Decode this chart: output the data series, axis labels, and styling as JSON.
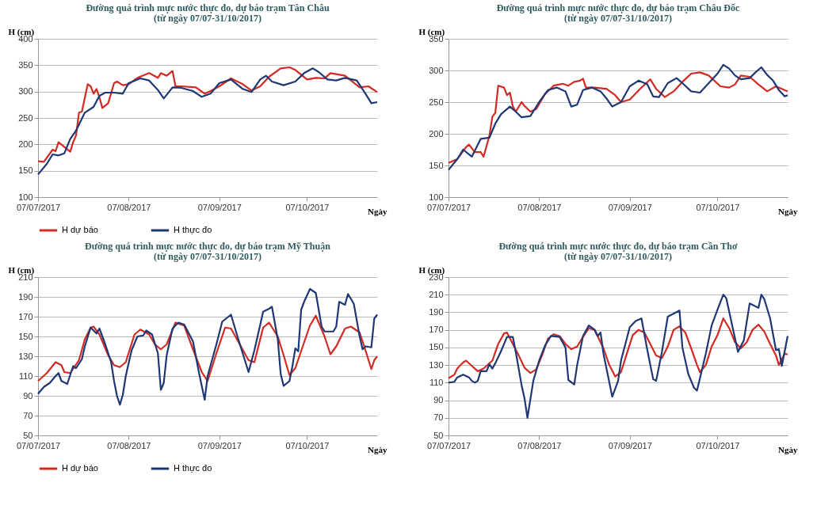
{
  "chart_data": [
    {
      "type": "line",
      "title": "Đường quá trình mực nước thực đo, dự báo trạm Tân Châu",
      "subtitle": "(từ ngày 07/07-31/10/2017)",
      "ylabel": "H (cm)",
      "xlabel": "Ngày",
      "legend": "bottom",
      "grid": "y",
      "xlim": [
        "2017-07-07",
        "2017-10-31"
      ],
      "xticks": [
        {
          "value": "2017-07-07",
          "label": "07/07/2017"
        },
        {
          "value": "2017-08-07",
          "label": "07/08/2017"
        },
        {
          "value": "2017-09-07",
          "label": "07/09/2017"
        },
        {
          "value": "2017-10-07",
          "label": "07/10/2017"
        }
      ],
      "ylim": [
        100,
        400
      ],
      "yticks": [
        100,
        150,
        200,
        250,
        300,
        350,
        400
      ],
      "series": [
        {
          "name": "H dự báo",
          "color": "#d42a24",
          "x": [
            "2017-07-07",
            "2017-07-09",
            "2017-07-12",
            "2017-07-13",
            "2017-07-14",
            "2017-07-16",
            "2017-07-18",
            "2017-07-19",
            "2017-07-20",
            "2017-07-21",
            "2017-07-22",
            "2017-07-24",
            "2017-07-25",
            "2017-07-26",
            "2017-07-27",
            "2017-07-28",
            "2017-07-29",
            "2017-07-31",
            "2017-08-02",
            "2017-08-03",
            "2017-08-05",
            "2017-08-07",
            "2017-08-10",
            "2017-08-14",
            "2017-08-17",
            "2017-08-18",
            "2017-08-20",
            "2017-08-22",
            "2017-08-23",
            "2017-08-25",
            "2017-08-30",
            "2017-09-02",
            "2017-09-04",
            "2017-09-07",
            "2017-09-11",
            "2017-09-15",
            "2017-09-18",
            "2017-09-21",
            "2017-09-24",
            "2017-09-28",
            "2017-10-01",
            "2017-10-03",
            "2017-10-07",
            "2017-10-10",
            "2017-10-13",
            "2017-10-15",
            "2017-10-20",
            "2017-10-25",
            "2017-10-28",
            "2017-10-31"
          ],
          "values": [
            168,
            167,
            190,
            187,
            204,
            195,
            186,
            204,
            217,
            260,
            262,
            314,
            310,
            296,
            305,
            289,
            269,
            278,
            316,
            319,
            312,
            314,
            326,
            335,
            326,
            335,
            330,
            339,
            310,
            310,
            308,
            296,
            301,
            310,
            325,
            314,
            302,
            310,
            328,
            344,
            346,
            341,
            323,
            326,
            325,
            335,
            330,
            308,
            310,
            299
          ]
        },
        {
          "name": "H thực đo",
          "color": "#1f3875",
          "x": [
            "2017-07-07",
            "2017-07-10",
            "2017-07-12",
            "2017-07-14",
            "2017-07-16",
            "2017-07-18",
            "2017-07-20",
            "2017-07-23",
            "2017-07-26",
            "2017-07-28",
            "2017-07-30",
            "2017-08-02",
            "2017-08-05",
            "2017-08-07",
            "2017-08-11",
            "2017-08-14",
            "2017-08-17",
            "2017-08-19",
            "2017-08-22",
            "2017-08-25",
            "2017-08-29",
            "2017-09-01",
            "2017-09-04",
            "2017-09-07",
            "2017-09-11",
            "2017-09-15",
            "2017-09-18",
            "2017-09-21",
            "2017-09-23",
            "2017-09-25",
            "2017-09-29",
            "2017-10-03",
            "2017-10-06",
            "2017-10-09",
            "2017-10-11",
            "2017-10-14",
            "2017-10-17",
            "2017-10-20",
            "2017-10-24",
            "2017-10-27",
            "2017-10-29",
            "2017-10-31"
          ],
          "values": [
            143,
            163,
            181,
            179,
            183,
            210,
            226,
            260,
            271,
            292,
            298,
            298,
            296,
            316,
            325,
            321,
            303,
            287,
            308,
            307,
            301,
            290,
            296,
            316,
            323,
            305,
            299,
            323,
            330,
            319,
            312,
            319,
            335,
            344,
            337,
            323,
            321,
            326,
            321,
            296,
            278,
            280
          ]
        }
      ]
    },
    {
      "type": "line",
      "title": "Đường quá trình mực nước thực đo, dự báo trạm Châu Đốc",
      "subtitle": "(từ ngày 07/07-31/10/2017)",
      "ylabel": "H (cm)",
      "xlabel": "Ngày",
      "legend": "bottom",
      "grid": "y",
      "xlim": [
        "2017-07-07",
        "2017-10-31"
      ],
      "xticks": [
        {
          "value": "2017-07-07",
          "label": "07/07/2017"
        },
        {
          "value": "2017-08-07",
          "label": "07/08/2017"
        },
        {
          "value": "2017-09-07",
          "label": "07/09/2017"
        },
        {
          "value": "2017-10-07",
          "label": "07/10/2017"
        }
      ],
      "ylim": [
        100,
        350
      ],
      "yticks": [
        100,
        150,
        200,
        250,
        300,
        350
      ],
      "series": [
        {
          "name": "H dự báo",
          "color": "#d42a24",
          "x": [
            "2017-07-07",
            "2017-07-10",
            "2017-07-13",
            "2017-07-14",
            "2017-07-16",
            "2017-07-18",
            "2017-07-19",
            "2017-07-21",
            "2017-07-22",
            "2017-07-23",
            "2017-07-24",
            "2017-07-26",
            "2017-07-27",
            "2017-07-28",
            "2017-07-29",
            "2017-07-30",
            "2017-08-01",
            "2017-08-02",
            "2017-08-04",
            "2017-08-06",
            "2017-08-09",
            "2017-08-12",
            "2017-08-15",
            "2017-08-17",
            "2017-08-19",
            "2017-08-21",
            "2017-08-22",
            "2017-08-23",
            "2017-08-26",
            "2017-08-30",
            "2017-09-02",
            "2017-09-04",
            "2017-09-07",
            "2017-09-11",
            "2017-09-14",
            "2017-09-16",
            "2017-09-19",
            "2017-09-22",
            "2017-09-25",
            "2017-09-28",
            "2017-10-01",
            "2017-10-04",
            "2017-10-08",
            "2017-10-11",
            "2017-10-13",
            "2017-10-15",
            "2017-10-18",
            "2017-10-21",
            "2017-10-24",
            "2017-10-27",
            "2017-10-31"
          ],
          "values": [
            154,
            160,
            179,
            183,
            171,
            171,
            164,
            197,
            227,
            233,
            276,
            273,
            261,
            265,
            243,
            235,
            250,
            244,
            235,
            239,
            263,
            276,
            279,
            276,
            282,
            284,
            287,
            273,
            273,
            271,
            261,
            250,
            254,
            273,
            286,
            271,
            258,
            267,
            282,
            295,
            297,
            292,
            275,
            273,
            278,
            292,
            290,
            278,
            267,
            275,
            267
          ]
        },
        {
          "name": "H thực đo",
          "color": "#1f3875",
          "x": [
            "2017-07-07",
            "2017-07-10",
            "2017-07-12",
            "2017-07-15",
            "2017-07-18",
            "2017-07-21",
            "2017-07-23",
            "2017-07-25",
            "2017-07-28",
            "2017-07-30",
            "2017-08-01",
            "2017-08-04",
            "2017-08-07",
            "2017-08-10",
            "2017-08-13",
            "2017-08-16",
            "2017-08-18",
            "2017-08-20",
            "2017-08-22",
            "2017-08-25",
            "2017-08-28",
            "2017-08-30",
            "2017-09-01",
            "2017-09-04",
            "2017-09-07",
            "2017-09-10",
            "2017-09-13",
            "2017-09-15",
            "2017-09-17",
            "2017-09-20",
            "2017-09-23",
            "2017-09-25",
            "2017-09-28",
            "2017-10-01",
            "2017-10-04",
            "2017-10-07",
            "2017-10-09",
            "2017-10-11",
            "2017-10-13",
            "2017-10-15",
            "2017-10-18",
            "2017-10-20",
            "2017-10-22",
            "2017-10-24",
            "2017-10-26",
            "2017-10-28",
            "2017-10-30",
            "2017-10-31"
          ],
          "values": [
            143,
            160,
            175,
            164,
            192,
            194,
            216,
            231,
            243,
            235,
            226,
            228,
            250,
            269,
            273,
            267,
            243,
            246,
            269,
            273,
            267,
            256,
            243,
            250,
            275,
            284,
            278,
            259,
            258,
            280,
            288,
            280,
            267,
            265,
            280,
            295,
            309,
            303,
            292,
            286,
            288,
            297,
            305,
            293,
            284,
            269,
            259,
            261
          ]
        }
      ]
    },
    {
      "type": "line",
      "title": "Đường quá trình mực nước thực đo, dự báo trạm Mỹ Thuận",
      "subtitle": "(từ ngày 07/07-31/10/2017)",
      "ylabel": "H (cm)",
      "xlabel": "Ngày",
      "legend": "bottom",
      "grid": "y",
      "xlim": [
        "2017-07-07",
        "2017-10-31"
      ],
      "xticks": [
        {
          "value": "2017-07-07",
          "label": "07/07/2017"
        },
        {
          "value": "2017-08-07",
          "label": "07/08/2017"
        },
        {
          "value": "2017-09-07",
          "label": "07/09/2017"
        },
        {
          "value": "2017-10-07",
          "label": "07/10/2017"
        }
      ],
      "ylim": [
        50,
        210
      ],
      "yticks": [
        50,
        70,
        90,
        110,
        130,
        150,
        170,
        190,
        210
      ],
      "series": [
        {
          "name": "H dự báo",
          "color": "#d42a24",
          "x": [
            "2017-07-07",
            "2017-07-10",
            "2017-07-13",
            "2017-07-15",
            "2017-07-16",
            "2017-07-18",
            "2017-07-21",
            "2017-07-23",
            "2017-07-25",
            "2017-07-26",
            "2017-07-28",
            "2017-07-31",
            "2017-08-02",
            "2017-08-04",
            "2017-08-06",
            "2017-08-09",
            "2017-08-11",
            "2017-08-14",
            "2017-08-16",
            "2017-08-18",
            "2017-08-20",
            "2017-08-23",
            "2017-08-26",
            "2017-08-29",
            "2017-09-01",
            "2017-09-03",
            "2017-09-06",
            "2017-09-09",
            "2017-09-11",
            "2017-09-14",
            "2017-09-17",
            "2017-09-19",
            "2017-09-22",
            "2017-09-24",
            "2017-09-27",
            "2017-09-29",
            "2017-10-01",
            "2017-10-03",
            "2017-10-06",
            "2017-10-08",
            "2017-10-10",
            "2017-10-13",
            "2017-10-15",
            "2017-10-17",
            "2017-10-20",
            "2017-10-22",
            "2017-10-25",
            "2017-10-27",
            "2017-10-29",
            "2017-10-30",
            "2017-10-31"
          ],
          "values": [
            105,
            113,
            124,
            121,
            114,
            113,
            126,
            147,
            159,
            160,
            152,
            131,
            121,
            119,
            124,
            152,
            157,
            152,
            142,
            137,
            142,
            164,
            161,
            137,
            114,
            105,
            133,
            159,
            158,
            142,
            126,
            124,
            159,
            164,
            150,
            131,
            111,
            118,
            144,
            161,
            171,
            150,
            132,
            140,
            158,
            160,
            154,
            136,
            117,
            126,
            130
          ]
        },
        {
          "name": "H thực đo",
          "color": "#1f3875",
          "x": [
            "2017-07-07",
            "2017-07-09",
            "2017-07-11",
            "2017-07-13",
            "2017-07-14",
            "2017-07-15",
            "2017-07-17",
            "2017-07-19",
            "2017-07-20",
            "2017-07-22",
            "2017-07-23",
            "2017-07-25",
            "2017-07-27",
            "2017-07-28",
            "2017-07-30",
            "2017-08-01",
            "2017-08-02",
            "2017-08-03",
            "2017-08-04",
            "2017-08-05",
            "2017-08-06",
            "2017-08-08",
            "2017-08-10",
            "2017-08-12",
            "2017-08-13",
            "2017-08-15",
            "2017-08-17",
            "2017-08-18",
            "2017-08-19",
            "2017-08-20",
            "2017-08-22",
            "2017-08-24",
            "2017-08-26",
            "2017-08-29",
            "2017-08-31",
            "2017-09-02",
            "2017-09-03",
            "2017-09-06",
            "2017-09-08",
            "2017-09-11",
            "2017-09-13",
            "2017-09-15",
            "2017-09-17",
            "2017-09-19",
            "2017-09-22",
            "2017-09-24",
            "2017-09-25",
            "2017-09-27",
            "2017-09-28",
            "2017-09-29",
            "2017-10-01",
            "2017-10-02",
            "2017-10-03",
            "2017-10-04",
            "2017-10-05",
            "2017-10-06",
            "2017-10-08",
            "2017-10-10",
            "2017-10-12",
            "2017-10-13",
            "2017-10-16",
            "2017-10-17",
            "2017-10-18",
            "2017-10-20",
            "2017-10-21",
            "2017-10-23",
            "2017-10-25",
            "2017-10-26",
            "2017-10-27",
            "2017-10-29",
            "2017-10-30",
            "2017-10-31"
          ],
          "values": [
            92,
            99,
            103,
            110,
            113,
            105,
            102,
            120,
            118,
            127,
            140,
            159,
            153,
            158,
            142,
            124,
            105,
            90,
            81,
            91,
            110,
            136,
            150,
            151,
            156,
            152,
            133,
            96,
            103,
            131,
            158,
            164,
            162,
            145,
            114,
            86,
            110,
            142,
            165,
            172,
            152,
            133,
            114,
            136,
            175,
            178,
            180,
            147,
            112,
            100,
            105,
            120,
            138,
            135,
            177,
            185,
            198,
            194,
            160,
            155,
            155,
            160,
            185,
            182,
            193,
            183,
            150,
            137,
            140,
            139,
            168,
            172
          ]
        }
      ]
    },
    {
      "type": "line",
      "title": "Đường quá trình mực nước thực đo, dự báo trạm Cần Thơ",
      "subtitle": "(từ ngày 07/07-31/10/2017)",
      "ylabel": "H (cm)",
      "xlabel": "Ngày",
      "legend": "bottom",
      "grid": "y",
      "xlim": [
        "2017-07-07",
        "2017-10-31"
      ],
      "xticks": [
        {
          "value": "2017-07-07",
          "label": "07/07/2017"
        },
        {
          "value": "2017-08-07",
          "label": "07/08/2017"
        },
        {
          "value": "2017-09-07",
          "label": "07/09/2017"
        },
        {
          "value": "2017-10-07",
          "label": "07/10/2017"
        }
      ],
      "ylim": [
        50,
        230
      ],
      "yticks": [
        50,
        70,
        90,
        110,
        130,
        150,
        170,
        190,
        210,
        230
      ],
      "series": [
        {
          "name": "H dự báo",
          "color": "#d42a24",
          "x": [
            "2017-07-07",
            "2017-07-09",
            "2017-07-10",
            "2017-07-12",
            "2017-07-13",
            "2017-07-15",
            "2017-07-17",
            "2017-07-19",
            "2017-07-22",
            "2017-07-24",
            "2017-07-26",
            "2017-07-27",
            "2017-07-29",
            "2017-07-31",
            "2017-08-02",
            "2017-08-04",
            "2017-08-06",
            "2017-08-08",
            "2017-08-10",
            "2017-08-12",
            "2017-08-14",
            "2017-08-16",
            "2017-08-18",
            "2017-08-20",
            "2017-08-22",
            "2017-08-24",
            "2017-08-26",
            "2017-08-29",
            "2017-08-31",
            "2017-09-02",
            "2017-09-04",
            "2017-09-06",
            "2017-09-08",
            "2017-09-10",
            "2017-09-12",
            "2017-09-14",
            "2017-09-16",
            "2017-09-18",
            "2017-09-20",
            "2017-09-22",
            "2017-09-24",
            "2017-09-26",
            "2017-09-28",
            "2017-09-30",
            "2017-10-01",
            "2017-10-03",
            "2017-10-05",
            "2017-10-07",
            "2017-10-09",
            "2017-10-11",
            "2017-10-13",
            "2017-10-15",
            "2017-10-17",
            "2017-10-19",
            "2017-10-21",
            "2017-10-23",
            "2017-10-25",
            "2017-10-27",
            "2017-10-28",
            "2017-10-30",
            "2017-10-31"
          ],
          "values": [
            115,
            119,
            126,
            133,
            135,
            129,
            123,
            126,
            135,
            154,
            166,
            167,
            154,
            141,
            127,
            121,
            125,
            141,
            160,
            165,
            163,
            154,
            148,
            151,
            162,
            172,
            170,
            149,
            130,
            117,
            122,
            143,
            164,
            170,
            167,
            154,
            141,
            138,
            151,
            170,
            174,
            167,
            149,
            130,
            122,
            130,
            151,
            164,
            183,
            172,
            156,
            149,
            156,
            170,
            176,
            168,
            154,
            141,
            130,
            143,
            142
          ]
        },
        {
          "name": "H thực đo",
          "color": "#1f3875",
          "x": [
            "2017-07-07",
            "2017-07-09",
            "2017-07-10",
            "2017-07-12",
            "2017-07-14",
            "2017-07-15",
            "2017-07-16",
            "2017-07-17",
            "2017-07-18",
            "2017-07-20",
            "2017-07-21",
            "2017-07-22",
            "2017-07-23",
            "2017-07-25",
            "2017-07-27",
            "2017-07-29",
            "2017-07-30",
            "2017-08-01",
            "2017-08-02",
            "2017-08-03",
            "2017-08-05",
            "2017-08-07",
            "2017-08-09",
            "2017-08-11",
            "2017-08-14",
            "2017-08-16",
            "2017-08-17",
            "2017-08-19",
            "2017-08-20",
            "2017-08-22",
            "2017-08-24",
            "2017-08-26",
            "2017-08-27",
            "2017-08-28",
            "2017-08-29",
            "2017-09-01",
            "2017-09-03",
            "2017-09-04",
            "2017-09-07",
            "2017-09-09",
            "2017-09-11",
            "2017-09-13",
            "2017-09-15",
            "2017-09-16",
            "2017-09-18",
            "2017-09-20",
            "2017-09-24",
            "2017-09-25",
            "2017-09-27",
            "2017-09-29",
            "2017-09-30",
            "2017-10-03",
            "2017-10-05",
            "2017-10-07",
            "2017-10-09",
            "2017-10-10",
            "2017-10-14",
            "2017-10-16",
            "2017-10-18",
            "2017-10-21",
            "2017-10-22",
            "2017-10-23",
            "2017-10-25",
            "2017-10-27",
            "2017-10-28",
            "2017-10-29",
            "2017-10-31"
          ],
          "values": [
            110,
            111,
            116,
            119,
            116,
            112,
            110,
            112,
            123,
            123,
            131,
            126,
            132,
            146,
            162,
            162,
            145,
            107,
            92,
            70,
            112,
            135,
            152,
            163,
            162,
            150,
            113,
            108,
            130,
            163,
            175,
            170,
            163,
            167,
            143,
            94,
            112,
            135,
            173,
            180,
            183,
            147,
            114,
            112,
            145,
            185,
            192,
            150,
            120,
            104,
            101,
            143,
            175,
            193,
            210,
            206,
            145,
            158,
            200,
            195,
            210,
            205,
            183,
            147,
            148,
            129,
            163
          ]
        }
      ]
    }
  ]
}
